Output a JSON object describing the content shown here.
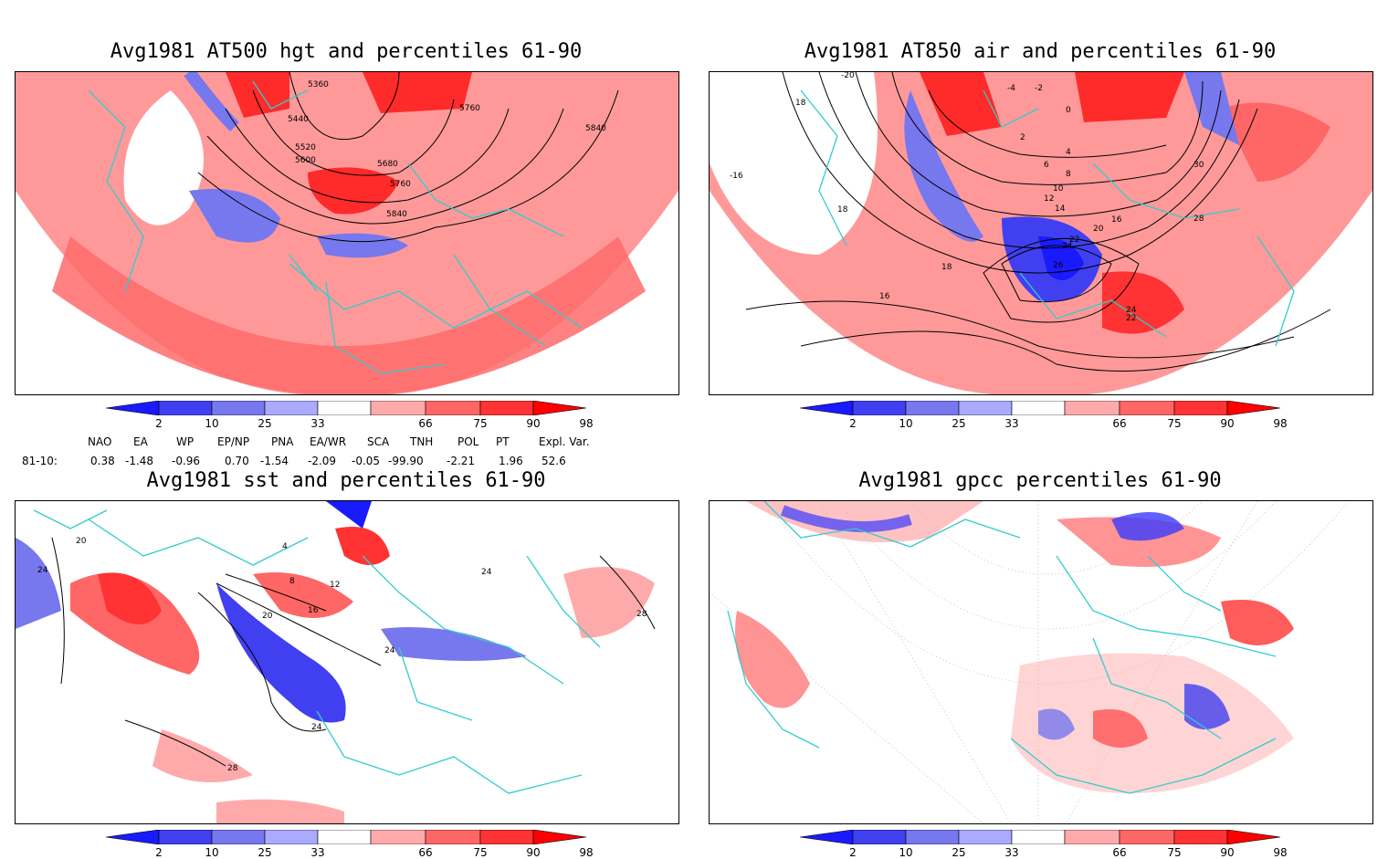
{
  "panels": [
    {
      "title": "Avg1981 AT500 hgt and percentiles 61-90",
      "contour_labels": [
        "5360",
        "5440",
        "5520",
        "5600",
        "5680",
        "5760",
        "5840",
        "5760",
        "5840"
      ]
    },
    {
      "title": "Avg1981 AT850 air and percentiles 61-90",
      "contour_labels": [
        "-20",
        "18",
        "-4",
        "-2",
        "0",
        "2",
        "4",
        "6",
        "8",
        "10",
        "12",
        "14",
        "16",
        "18",
        "20",
        "22",
        "24",
        "26",
        "28",
        "30",
        "-16",
        "16",
        "18",
        "24",
        "22"
      ]
    },
    {
      "title": "Avg1981 sst and percentiles 61-90",
      "contour_labels": [
        "24",
        "28",
        "20",
        "4",
        "8",
        "12",
        "16",
        "20",
        "24",
        "24",
        "28",
        "24"
      ]
    },
    {
      "title": "Avg1981 gpcc percentiles 61-90",
      "contour_labels": []
    }
  ],
  "colorbar": {
    "labels": [
      "2",
      "10",
      "25",
      "33",
      "66",
      "75",
      "90",
      "98"
    ],
    "colors": [
      "#1a1aff",
      "#4040f0",
      "#7777ee",
      "#aaaaff",
      "#ffffff",
      "#ffaaaa",
      "#ff6666",
      "#ff3333",
      "#ff0000"
    ]
  },
  "indices": {
    "headers": [
      "NAO",
      "EA",
      "WP",
      "EP/NP",
      "PNA",
      "EA/WR",
      "SCA",
      "TNH",
      "POL",
      "PT",
      "Expl. Var."
    ],
    "row_label": "81-10:",
    "values": [
      "0.38",
      "-1.48",
      "-0.96",
      "0.70",
      "-1.54",
      "-2.09",
      "-0.05",
      "-99.90",
      "-2.21",
      "1.96",
      "52.6"
    ]
  }
}
